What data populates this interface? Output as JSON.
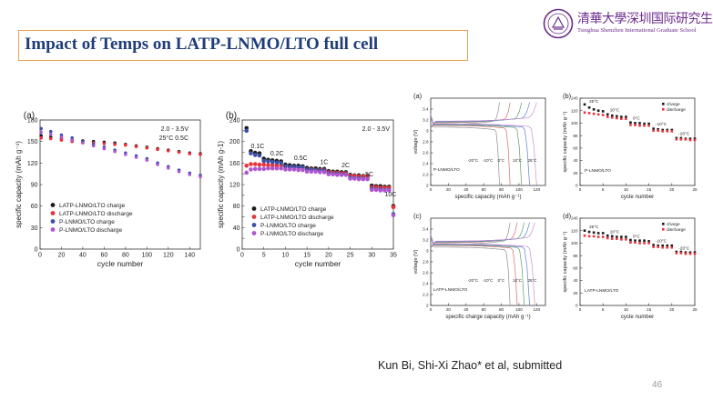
{
  "slide": {
    "title": "Impact of Temps on LATP-LNMO/LTO full cell",
    "logo_cn": "清華大學深圳国际研究生院",
    "logo_en": "Tsinghua Shenzhen International Graduate School",
    "citation": "Kun Bi, Shi-Xi Zhao* et al,  submitted",
    "page_number": "46"
  },
  "colors": {
    "title": "#1f3d7a",
    "title_border": "#e8a24e",
    "logo": "#6b2c8c",
    "latp_charge": "#1a1a1a",
    "latp_discharge": "#e8333a",
    "p_charge": "#3a4fa8",
    "p_discharge": "#b055d0"
  },
  "chart_data": [
    {
      "id": "a-left",
      "type": "scatter",
      "panel_label": "(a)",
      "xlabel": "cycle number",
      "ylabel": "specific capacity (mAh g⁻¹)",
      "xlim": [
        0,
        150
      ],
      "ylim": [
        0,
        180
      ],
      "xticks": [
        0,
        20,
        40,
        60,
        80,
        100,
        120,
        140
      ],
      "yticks": [
        0,
        30,
        60,
        90,
        120,
        150,
        180
      ],
      "annotations": [
        "2.0 - 3.5V",
        "25°C 0.5C"
      ],
      "legend_position": "lower-left",
      "series": [
        {
          "name": "LATP-LNMO/LTO charge",
          "color": "#1a1a1a",
          "x": [
            1,
            10,
            20,
            30,
            40,
            50,
            60,
            70,
            80,
            90,
            100,
            110,
            120,
            130,
            140,
            150
          ],
          "values": [
            158,
            156,
            154,
            152,
            151,
            150,
            149,
            148,
            146,
            144,
            142,
            140,
            138,
            136,
            134,
            133
          ]
        },
        {
          "name": "LATP-LNMO/LTO discharge",
          "color": "#e8333a",
          "x": [
            1,
            10,
            20,
            30,
            40,
            50,
            60,
            70,
            80,
            90,
            100,
            110,
            120,
            130,
            140,
            150
          ],
          "values": [
            155,
            154,
            152,
            150,
            149,
            148,
            147,
            146,
            145,
            143,
            141,
            139,
            137,
            135,
            133,
            132
          ]
        },
        {
          "name": "P-LNMO/LTO charge",
          "color": "#3a4fa8",
          "x": [
            1,
            10,
            20,
            30,
            40,
            50,
            60,
            70,
            80,
            90,
            100,
            110,
            120,
            130,
            140,
            150
          ],
          "values": [
            168,
            164,
            159,
            155,
            150,
            146,
            142,
            138,
            134,
            130,
            126,
            120,
            115,
            110,
            106,
            103
          ]
        },
        {
          "name": "P-LNMO/LTO discharge",
          "color": "#b055d0",
          "x": [
            1,
            10,
            20,
            30,
            40,
            50,
            60,
            70,
            80,
            90,
            100,
            110,
            120,
            130,
            140,
            150
          ],
          "values": [
            163,
            160,
            156,
            152,
            148,
            144,
            140,
            136,
            132,
            128,
            124,
            118,
            113,
            108,
            104,
            101
          ]
        }
      ]
    },
    {
      "id": "b-left",
      "type": "scatter",
      "panel_label": "(b)",
      "xlabel": "cycle number",
      "ylabel": "specific capacity (mAh g-1)",
      "xlim": [
        0,
        35
      ],
      "ylim": [
        0,
        240
      ],
      "xticks": [
        0,
        5,
        10,
        15,
        20,
        25,
        30,
        35
      ],
      "yticks": [
        0,
        20,
        40,
        60,
        80,
        100,
        120,
        140,
        160,
        180,
        200,
        220,
        240
      ],
      "annotations": [
        "2.0 - 3.5V"
      ],
      "rate_labels": [
        "0.1C",
        "0.2C",
        "0.5C",
        "1C",
        "2C",
        "5C",
        "10C"
      ],
      "legend_position": "lower-left",
      "series": [
        {
          "name": "LATP-LNMO/LTO charge",
          "color": "#1a1a1a",
          "x": [
            1,
            2,
            3,
            4,
            5,
            6,
            7,
            8,
            9,
            10,
            11,
            12,
            13,
            14,
            15,
            16,
            17,
            18,
            19,
            20,
            21,
            22,
            23,
            24,
            25,
            26,
            27,
            28,
            29,
            30,
            31,
            32,
            33,
            34,
            35
          ],
          "values": [
            225,
            182,
            179,
            178,
            168,
            166,
            165,
            164,
            163,
            157,
            156,
            155,
            155,
            154,
            151,
            150,
            150,
            149,
            149,
            145,
            144,
            144,
            143,
            143,
            138,
            137,
            137,
            136,
            136,
            118,
            117,
            117,
            116,
            116,
            80
          ]
        },
        {
          "name": "LATP-LNMO/LTO discharge",
          "color": "#e8333a",
          "x": [
            1,
            2,
            3,
            4,
            5,
            6,
            7,
            8,
            9,
            10,
            11,
            12,
            13,
            14,
            15,
            16,
            17,
            18,
            19,
            20,
            21,
            22,
            23,
            24,
            25,
            26,
            27,
            28,
            29,
            30,
            31,
            32,
            33,
            34,
            35
          ],
          "values": [
            155,
            158,
            158,
            157,
            157,
            156,
            156,
            155,
            155,
            153,
            152,
            152,
            151,
            151,
            148,
            148,
            147,
            147,
            147,
            143,
            142,
            142,
            141,
            141,
            136,
            136,
            135,
            135,
            135,
            115,
            115,
            114,
            114,
            114,
            78
          ]
        },
        {
          "name": "P-LNMO/LTO charge",
          "color": "#3a4fa8",
          "x": [
            1,
            2,
            3,
            4,
            5,
            6,
            7,
            8,
            9,
            10,
            11,
            12,
            13,
            14,
            15,
            16,
            17,
            18,
            19,
            20,
            21,
            22,
            23,
            24,
            25,
            26,
            27,
            28,
            29,
            30,
            31,
            32,
            33,
            34,
            35
          ],
          "values": [
            220,
            178,
            175,
            174,
            164,
            163,
            162,
            161,
            160,
            154,
            153,
            153,
            152,
            152,
            148,
            147,
            147,
            146,
            146,
            141,
            140,
            140,
            139,
            139,
            133,
            132,
            132,
            131,
            131,
            112,
            111,
            111,
            110,
            110,
            65
          ]
        },
        {
          "name": "P-LNMO/LTO discharge",
          "color": "#b055d0",
          "x": [
            1,
            2,
            3,
            4,
            5,
            6,
            7,
            8,
            9,
            10,
            11,
            12,
            13,
            14,
            15,
            16,
            17,
            18,
            19,
            20,
            21,
            22,
            23,
            24,
            25,
            26,
            27,
            28,
            29,
            30,
            31,
            32,
            33,
            34,
            35
          ],
          "values": [
            142,
            148,
            149,
            149,
            149,
            150,
            150,
            150,
            150,
            148,
            148,
            148,
            147,
            147,
            144,
            144,
            144,
            143,
            143,
            139,
            139,
            138,
            138,
            138,
            131,
            131,
            130,
            130,
            130,
            110,
            110,
            109,
            109,
            109,
            63
          ]
        }
      ]
    },
    {
      "id": "a-right",
      "type": "line",
      "panel_label": "(a)",
      "xlabel": "specific capacity (mAh g⁻¹)",
      "ylabel": "voltage (V)",
      "xlim": [
        0,
        130
      ],
      "ylim": [
        2.0,
        3.6
      ],
      "xticks": [
        0,
        20,
        40,
        60,
        80,
        100,
        120
      ],
      "yticks": [
        2.0,
        2.2,
        2.4,
        2.6,
        2.8,
        3.0,
        3.2,
        3.4
      ],
      "sample_label": "P-LNMO/LTO",
      "temp_labels": [
        "-20°C",
        "-10°C",
        "0°C",
        "10°C",
        "25°C"
      ],
      "series": [
        {
          "name": "-20°C",
          "color": "#8e8e8e",
          "capacity": 78,
          "plateau": 3.12
        },
        {
          "name": "-10°C",
          "color": "#d86a6a",
          "capacity": 90,
          "plateau": 3.15
        },
        {
          "name": "0°C",
          "color": "#5aa06a",
          "capacity": 103,
          "plateau": 3.16
        },
        {
          "name": "10°C",
          "color": "#5e7fd0",
          "capacity": 112,
          "plateau": 3.17
        },
        {
          "name": "25°C",
          "color": "#c98fd2",
          "capacity": 120,
          "plateau": 3.18
        }
      ]
    },
    {
      "id": "b-right",
      "type": "scatter",
      "panel_label": "(b)",
      "xlabel": "cycle number",
      "ylabel": "specific capacity (mAh g⁻¹)",
      "xlim": [
        0,
        25
      ],
      "ylim": [
        0,
        140
      ],
      "xticks": [
        0,
        5,
        10,
        15,
        20,
        25
      ],
      "yticks": [
        0,
        20,
        40,
        60,
        80,
        100,
        120,
        140
      ],
      "sample_label": "P-LNMO/LTO",
      "temp_labels": [
        "25°C",
        "10°C",
        "0°C",
        "-10°C",
        "-20°C"
      ],
      "legend_position": "top-right",
      "series": [
        {
          "name": "charge",
          "color": "#1a1a1a",
          "x": [
            1,
            2,
            3,
            4,
            5,
            6,
            7,
            8,
            9,
            10,
            11,
            12,
            13,
            14,
            15,
            16,
            17,
            18,
            19,
            20,
            21,
            22,
            23,
            24,
            25
          ],
          "values": [
            130,
            125,
            122,
            120,
            119,
            114,
            112,
            111,
            110,
            110,
            101,
            100,
            100,
            99,
            99,
            91,
            90,
            89,
            89,
            89,
            76,
            76,
            75,
            75,
            75
          ]
        },
        {
          "name": "discharge",
          "color": "#e8333a",
          "x": [
            1,
            2,
            3,
            4,
            5,
            6,
            7,
            8,
            9,
            10,
            11,
            12,
            13,
            14,
            15,
            16,
            17,
            18,
            19,
            20,
            21,
            22,
            23,
            24,
            25
          ],
          "values": [
            117,
            116,
            115,
            114,
            113,
            110,
            109,
            108,
            107,
            107,
            97,
            97,
            96,
            96,
            96,
            88,
            88,
            87,
            87,
            87,
            74,
            74,
            74,
            73,
            73
          ]
        }
      ]
    },
    {
      "id": "c-right",
      "type": "line",
      "panel_label": "(c)",
      "xlabel": "specific charge capacity (mAh g⁻¹)",
      "ylabel": "voltage (V)",
      "xlim": [
        0,
        130
      ],
      "ylim": [
        2.0,
        3.6
      ],
      "xticks": [
        0,
        20,
        40,
        60,
        80,
        100,
        120
      ],
      "yticks": [
        2.0,
        2.2,
        2.4,
        2.6,
        2.8,
        3.0,
        3.2,
        3.4
      ],
      "sample_label": "LATP-LNMO/LTO",
      "temp_labels": [
        "-20°C",
        "-10°C",
        "0°C",
        "10°C",
        "25°C"
      ],
      "series": [
        {
          "name": "-20°C",
          "color": "#8e8e8e",
          "capacity": 90,
          "plateau": 3.12
        },
        {
          "name": "-10°C",
          "color": "#d86a6a",
          "capacity": 98,
          "plateau": 3.15
        },
        {
          "name": "0°C",
          "color": "#5aa06a",
          "capacity": 106,
          "plateau": 3.16
        },
        {
          "name": "10°C",
          "color": "#5e7fd0",
          "capacity": 112,
          "plateau": 3.17
        },
        {
          "name": "25°C",
          "color": "#c98fd2",
          "capacity": 118,
          "plateau": 3.18
        }
      ]
    },
    {
      "id": "d-right",
      "type": "scatter",
      "panel_label": "(d)",
      "xlabel": "cycle number",
      "ylabel": "specific capacity (mAh g⁻¹)",
      "xlim": [
        0,
        25
      ],
      "ylim": [
        0,
        140
      ],
      "xticks": [
        0,
        5,
        10,
        15,
        20,
        25
      ],
      "yticks": [
        0,
        20,
        40,
        60,
        80,
        100,
        120,
        140
      ],
      "sample_label": "LATP-LNMO/LTO",
      "temp_labels": [
        "25°C",
        "10°C",
        "0°C",
        "-10°C",
        "-20°C"
      ],
      "legend_position": "top-right",
      "series": [
        {
          "name": "charge",
          "color": "#1a1a1a",
          "x": [
            1,
            2,
            3,
            4,
            5,
            6,
            7,
            8,
            9,
            10,
            11,
            12,
            13,
            14,
            15,
            16,
            17,
            18,
            19,
            20,
            21,
            22,
            23,
            24,
            25
          ],
          "values": [
            120,
            118,
            117,
            116,
            116,
            112,
            111,
            110,
            110,
            110,
            105,
            104,
            104,
            104,
            103,
            97,
            96,
            96,
            96,
            96,
            86,
            86,
            85,
            85,
            85
          ]
        },
        {
          "name": "discharge",
          "color": "#e8333a",
          "x": [
            1,
            2,
            3,
            4,
            5,
            6,
            7,
            8,
            9,
            10,
            11,
            12,
            13,
            14,
            15,
            16,
            17,
            18,
            19,
            20,
            21,
            22,
            23,
            24,
            25
          ],
          "values": [
            112,
            111,
            111,
            110,
            110,
            108,
            107,
            107,
            106,
            106,
            101,
            101,
            100,
            100,
            100,
            94,
            94,
            93,
            93,
            93,
            84,
            84,
            83,
            83,
            83
          ]
        }
      ]
    }
  ]
}
